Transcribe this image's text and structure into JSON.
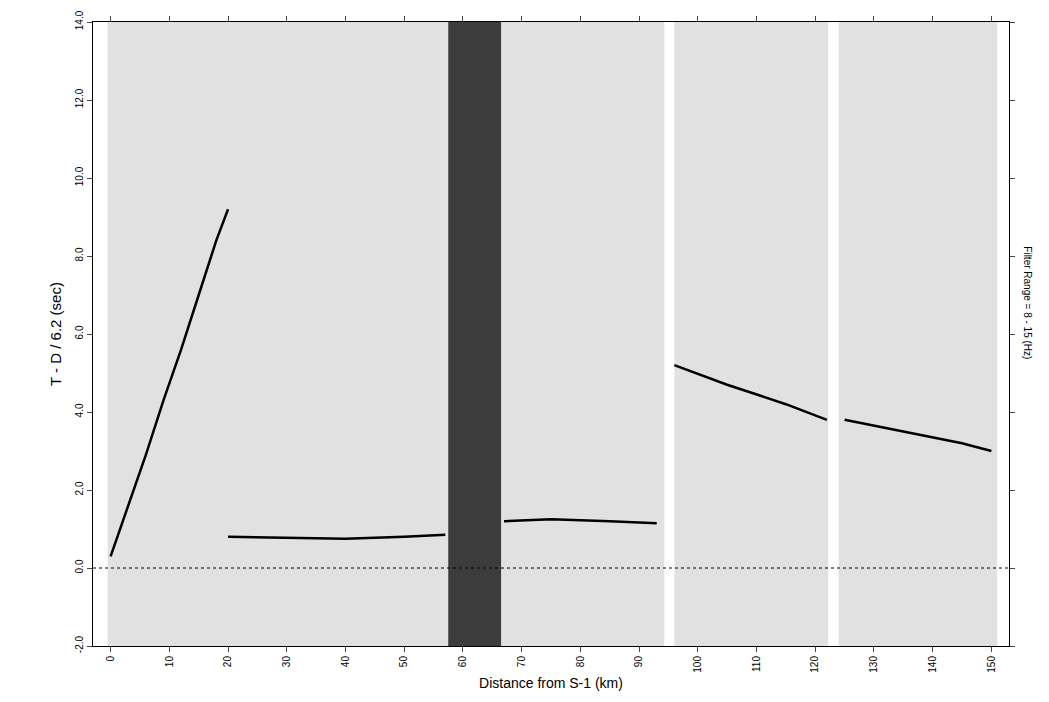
{
  "chart_data": {
    "type": "line",
    "xlabel": "Distance from S-1 (km)",
    "ylabel": "T - D / 6.2 (sec)",
    "annotation": "Filter Range = 8 - 15 (Hz)",
    "xlim": [
      -3,
      153
    ],
    "ylim": [
      -2,
      14
    ],
    "xticks": [
      0,
      10,
      20,
      30,
      40,
      50,
      60,
      70,
      80,
      90,
      100,
      110,
      120,
      130,
      140,
      150
    ],
    "yticks": [
      {
        "value": -2,
        "label": "-2.0"
      },
      {
        "value": 0,
        "label": "0.0"
      },
      {
        "value": 2,
        "label": "2.0"
      },
      {
        "value": 4,
        "label": "4.0"
      },
      {
        "value": 6,
        "label": "6.0"
      },
      {
        "value": 8,
        "label": "8.0"
      },
      {
        "value": 10,
        "label": "10.0"
      },
      {
        "value": 12,
        "label": "12.0"
      },
      {
        "value": 14,
        "label": "14.0"
      }
    ],
    "grid": false,
    "coverage": {
      "color": "#c8c8c8",
      "spans": [
        [
          -0.5,
          94.3
        ],
        [
          96,
          122.2
        ],
        [
          124,
          151
        ]
      ]
    },
    "bands": {
      "color": "#2a2a2a",
      "spans": [
        [
          57.5,
          66.5
        ]
      ]
    },
    "series": [
      {
        "color": "#000000",
        "line_style": "dot",
        "x": [
          -3,
          153
        ],
        "values": [
          0,
          0
        ]
      },
      {
        "color": "#000000",
        "line_style": "solid",
        "x": [
          0,
          3,
          6,
          9,
          12,
          15,
          18,
          20
        ],
        "values": [
          0.3,
          1.6,
          2.9,
          4.3,
          5.6,
          7.0,
          8.4,
          9.2
        ]
      },
      {
        "color": "#000000",
        "line_style": "solid",
        "x": [
          20,
          30,
          40,
          50,
          57
        ],
        "values": [
          0.8,
          0.78,
          0.75,
          0.8,
          0.85
        ]
      },
      {
        "color": "#000000",
        "line_style": "solid",
        "x": [
          67,
          75,
          85,
          93
        ],
        "values": [
          1.2,
          1.25,
          1.2,
          1.15
        ]
      },
      {
        "color": "#000000",
        "line_style": "solid",
        "x": [
          96,
          105,
          115,
          122
        ],
        "values": [
          5.2,
          4.7,
          4.2,
          3.8
        ]
      },
      {
        "color": "#000000",
        "line_style": "solid",
        "x": [
          125,
          135,
          145,
          150
        ],
        "values": [
          3.8,
          3.5,
          3.2,
          3.0
        ]
      }
    ]
  }
}
